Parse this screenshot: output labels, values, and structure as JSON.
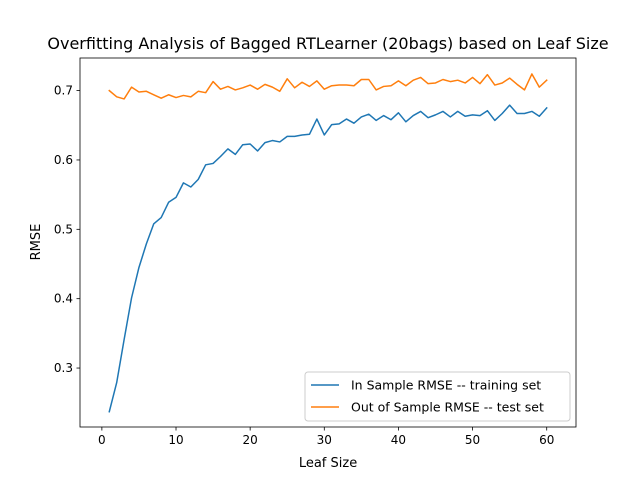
{
  "chart_data": {
    "type": "line",
    "title": "Overfitting Analysis of Bagged RTLearner (20bags) based on Leaf Size",
    "xlabel": "Leaf Size",
    "ylabel": "RMSE",
    "xlim": [
      -2.95,
      63.95
    ],
    "ylim": [
      0.215,
      0.747
    ],
    "xticks": [
      0,
      10,
      20,
      30,
      40,
      50,
      60
    ],
    "xtick_labels": [
      "0",
      "10",
      "20",
      "30",
      "40",
      "50",
      "60"
    ],
    "yticks": [
      0.3,
      0.4,
      0.5,
      0.6,
      0.7
    ],
    "ytick_labels": [
      "0.3",
      "0.4",
      "0.5",
      "0.6",
      "0.7"
    ],
    "grid": false,
    "legend_position": "lower-right",
    "x": [
      1,
      2,
      3,
      4,
      5,
      6,
      7,
      8,
      9,
      10,
      11,
      12,
      13,
      14,
      15,
      16,
      17,
      18,
      19,
      20,
      21,
      22,
      23,
      24,
      25,
      26,
      27,
      28,
      29,
      30,
      31,
      32,
      33,
      34,
      35,
      36,
      37,
      38,
      39,
      40,
      41,
      42,
      43,
      44,
      45,
      46,
      47,
      48,
      49,
      50,
      51,
      52,
      53,
      54,
      55,
      56,
      57,
      58,
      59,
      60
    ],
    "series": [
      {
        "name": "In Sample RMSE -- training set",
        "color": "#1f77b4",
        "values": [
          0.237,
          0.279,
          0.341,
          0.401,
          0.445,
          0.479,
          0.508,
          0.517,
          0.539,
          0.546,
          0.567,
          0.561,
          0.572,
          0.593,
          0.595,
          0.605,
          0.616,
          0.608,
          0.622,
          0.623,
          0.613,
          0.625,
          0.628,
          0.626,
          0.634,
          0.634,
          0.636,
          0.637,
          0.659,
          0.636,
          0.651,
          0.652,
          0.659,
          0.653,
          0.662,
          0.666,
          0.657,
          0.664,
          0.658,
          0.668,
          0.655,
          0.664,
          0.67,
          0.661,
          0.665,
          0.67,
          0.662,
          0.67,
          0.663,
          0.665,
          0.664,
          0.671,
          0.657,
          0.667,
          0.679,
          0.667,
          0.667,
          0.67,
          0.663,
          0.675
        ]
      },
      {
        "name": "Out of Sample RMSE -- test set",
        "color": "#ff7f0e",
        "values": [
          0.7,
          0.691,
          0.688,
          0.705,
          0.698,
          0.699,
          0.694,
          0.689,
          0.694,
          0.69,
          0.693,
          0.691,
          0.699,
          0.697,
          0.713,
          0.702,
          0.706,
          0.701,
          0.704,
          0.708,
          0.702,
          0.709,
          0.705,
          0.699,
          0.717,
          0.704,
          0.712,
          0.706,
          0.714,
          0.702,
          0.707,
          0.708,
          0.708,
          0.707,
          0.716,
          0.716,
          0.701,
          0.706,
          0.707,
          0.714,
          0.707,
          0.715,
          0.719,
          0.71,
          0.711,
          0.716,
          0.713,
          0.715,
          0.711,
          0.719,
          0.71,
          0.723,
          0.708,
          0.711,
          0.718,
          0.709,
          0.701,
          0.724,
          0.705,
          0.715
        ]
      }
    ]
  }
}
